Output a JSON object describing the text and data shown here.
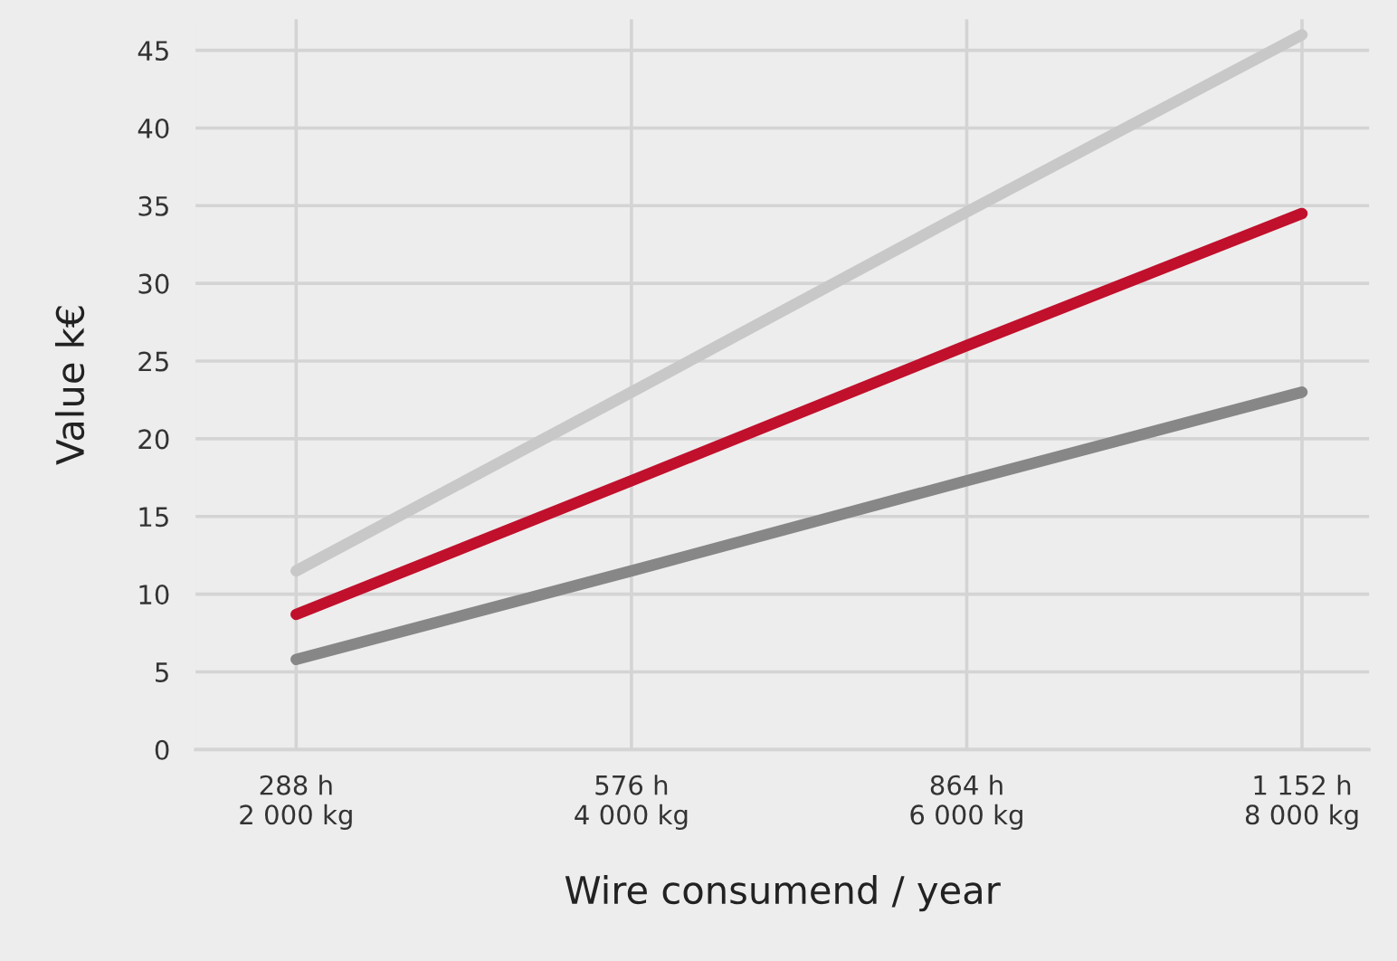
{
  "chart_data": {
    "type": "line",
    "xlabel": "Wire consumend / year",
    "ylabel": "Value k€",
    "categories": [
      "288 h\n2 000 kg",
      "576 h\n4 000 kg",
      "864 h\n6 000 kg",
      "1 152 h\n8 000 kg"
    ],
    "series": [
      {
        "color": "#c8c8c8",
        "values": [
          11.5,
          23,
          34.6,
          46
        ]
      },
      {
        "color": "#c0102c",
        "values": [
          8.7,
          17.3,
          26,
          34.5
        ]
      },
      {
        "color": "#878787",
        "values": [
          5.8,
          11.5,
          17.3,
          23
        ]
      }
    ],
    "ylim": [
      0,
      47
    ],
    "yticks": [
      0,
      5,
      10,
      15,
      20,
      25,
      30,
      35,
      40,
      45
    ],
    "grid": true,
    "marker": "none",
    "line_style": "solid"
  }
}
